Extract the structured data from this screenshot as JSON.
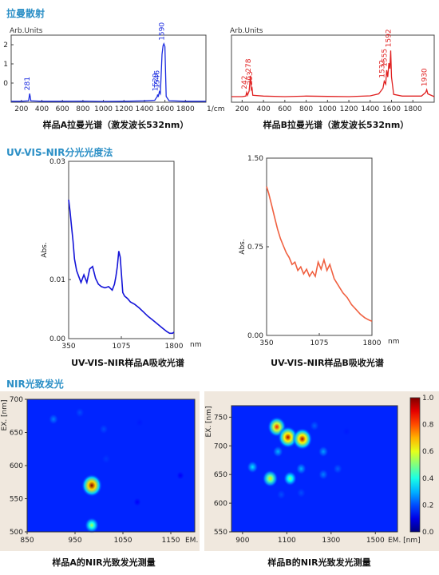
{
  "sections": {
    "raman": "拉曼散射",
    "uvvis": "UV-VIS-NIR分光光度法",
    "nir": "NIR光致发光"
  },
  "chart_data": [
    {
      "id": "raman-a",
      "type": "line",
      "caption": "样品A拉曼光谱（激发波长532nm）",
      "ylabel": "Arb.Units",
      "xunit": "1/cm",
      "xlim": [
        100,
        2000
      ],
      "ylim": [
        -1,
        2.5
      ],
      "xticks": [
        200,
        400,
        600,
        800,
        1000,
        1200,
        1400,
        1600,
        1800
      ],
      "yticks": [
        0,
        1,
        2
      ],
      "color": "#1a2be0",
      "x": [
        100,
        200,
        270,
        281,
        292,
        400,
        600,
        800,
        1000,
        1200,
        1400,
        1500,
        1525,
        1529,
        1535,
        1546,
        1555,
        1572,
        1582,
        1590,
        1600,
        1612,
        1640,
        1800,
        1900,
        2000
      ],
      "y": [
        -0.95,
        -0.95,
        -0.93,
        -0.55,
        -0.93,
        -0.95,
        -0.95,
        -0.94,
        -0.96,
        -0.95,
        -0.93,
        -0.9,
        -0.7,
        -0.6,
        -0.72,
        -0.45,
        -0.55,
        1.5,
        1.95,
        2.05,
        1.9,
        -0.7,
        -0.92,
        -0.95,
        -0.95,
        -0.95
      ],
      "peak_labels": [
        "281",
        "1529",
        "1546",
        "1590"
      ],
      "peak_x": [
        281,
        1529,
        1546,
        1590
      ],
      "peak_y": [
        -0.55,
        -0.6,
        -0.45,
        2.05
      ]
    },
    {
      "id": "raman-b",
      "type": "line",
      "caption": "样品B拉曼光谱（激发波长532nm）",
      "ylabel": "Arb.Units",
      "xlim": [
        100,
        2000
      ],
      "ylim": [
        -0.2,
        2.2
      ],
      "xticks": [
        200,
        400,
        600,
        800,
        1000,
        1200,
        1400,
        1600,
        1800
      ],
      "yticks": [],
      "color": "#e02020",
      "x": [
        100,
        200,
        235,
        242,
        250,
        265,
        278,
        286,
        293,
        300,
        400,
        600,
        800,
        1000,
        1200,
        1400,
        1480,
        1520,
        1532,
        1545,
        1555,
        1565,
        1575,
        1585,
        1592,
        1600,
        1620,
        1700,
        1880,
        1920,
        1930,
        1940,
        2000
      ],
      "y": [
        0.0,
        0.0,
        0.02,
        0.15,
        0.05,
        0.2,
        0.75,
        0.25,
        0.3,
        0.05,
        0.02,
        0.0,
        0.02,
        0.01,
        0.0,
        0.03,
        0.1,
        0.3,
        0.55,
        0.45,
        0.95,
        0.7,
        1.2,
        1.0,
        1.65,
        0.7,
        0.08,
        0.02,
        0.02,
        0.15,
        0.25,
        0.1,
        0.0
      ],
      "peak_labels": [
        "242",
        "278",
        "293",
        "1532",
        "1555",
        "1592",
        "1930"
      ],
      "peak_x": [
        242,
        278,
        293,
        1532,
        1555,
        1592,
        1930
      ],
      "peak_y": [
        0.15,
        0.75,
        0.3,
        0.55,
        0.95,
        1.65,
        0.25
      ]
    },
    {
      "id": "uv-a",
      "type": "line",
      "caption": "UV-VIS-NIR样品A吸收光谱",
      "ylabel": "Abs.",
      "xunit": "nm",
      "xlim": [
        350,
        1800
      ],
      "ylim": [
        0.0,
        0.03
      ],
      "xticks": [
        350,
        1075,
        1800
      ],
      "yticks": [
        0.0,
        0.01,
        0.03
      ],
      "ytick_labels": [
        "0.00",
        "0.01",
        "0.03"
      ],
      "color": "#1414d8",
      "x": [
        350,
        370,
        390,
        410,
        430,
        460,
        490,
        520,
        560,
        600,
        640,
        680,
        720,
        760,
        800,
        850,
        900,
        950,
        980,
        1000,
        1020,
        1040,
        1060,
        1075,
        1095,
        1120,
        1160,
        1200,
        1260,
        1320,
        1380,
        1440,
        1500,
        1560,
        1620,
        1660,
        1700,
        1740,
        1780,
        1800
      ],
      "y": [
        0.0235,
        0.0215,
        0.019,
        0.0165,
        0.0135,
        0.0115,
        0.0105,
        0.0095,
        0.0108,
        0.0095,
        0.0118,
        0.0122,
        0.0102,
        0.0092,
        0.0088,
        0.0086,
        0.0088,
        0.0082,
        0.0092,
        0.0105,
        0.0122,
        0.0148,
        0.0138,
        0.0112,
        0.0078,
        0.0072,
        0.0068,
        0.0062,
        0.0058,
        0.0052,
        0.0045,
        0.0038,
        0.0032,
        0.0026,
        0.002,
        0.0016,
        0.0012,
        0.0009,
        0.0009,
        0.0011
      ]
    },
    {
      "id": "uv-b",
      "type": "line",
      "caption": "UV-VIS-NIR样品B吸收光谱",
      "ylabel": "Abs.",
      "xunit": "nm",
      "xlim": [
        350,
        1800
      ],
      "ylim": [
        0.0,
        1.5
      ],
      "xticks": [
        350,
        1075,
        1800
      ],
      "yticks": [
        0.0,
        0.75,
        1.5
      ],
      "ytick_labels": [
        "0.00",
        "0.75",
        "1.50"
      ],
      "color": "#f06040",
      "x": [
        350,
        380,
        420,
        460,
        500,
        540,
        580,
        620,
        660,
        700,
        740,
        780,
        820,
        860,
        900,
        940,
        980,
        1020,
        1060,
        1100,
        1140,
        1180,
        1220,
        1280,
        1340,
        1400,
        1460,
        1520,
        1580,
        1640,
        1700,
        1760,
        1800
      ],
      "y": [
        1.26,
        1.2,
        1.1,
        1.0,
        0.9,
        0.82,
        0.76,
        0.7,
        0.66,
        0.6,
        0.62,
        0.55,
        0.58,
        0.52,
        0.56,
        0.5,
        0.54,
        0.5,
        0.62,
        0.56,
        0.64,
        0.55,
        0.6,
        0.48,
        0.42,
        0.36,
        0.32,
        0.26,
        0.22,
        0.18,
        0.15,
        0.13,
        0.12
      ]
    },
    {
      "id": "pl-a",
      "type": "heatmap",
      "caption": "样品A的NIR光致发光测量",
      "xlabel": "EM.",
      "ylabel": "EX. [nm]",
      "xlim": [
        850,
        1200
      ],
      "ylim": [
        500,
        700
      ],
      "xticks": [
        850,
        950,
        1050,
        1150
      ],
      "yticks": [
        500,
        550,
        600,
        650,
        700
      ],
      "spots": [
        {
          "x": 985,
          "y": 570,
          "i": 1.0
        },
        {
          "x": 985,
          "y": 510,
          "i": 0.55
        },
        {
          "x": 905,
          "y": 670,
          "i": 0.25
        },
        {
          "x": 960,
          "y": 680,
          "i": 0.2
        },
        {
          "x": 1010,
          "y": 655,
          "i": 0.2
        },
        {
          "x": 1015,
          "y": 610,
          "i": 0.18
        },
        {
          "x": 1085,
          "y": 665,
          "i": 0.15
        },
        {
          "x": 1080,
          "y": 545,
          "i": 0.12
        },
        {
          "x": 1170,
          "y": 585,
          "i": 0.12
        }
      ]
    },
    {
      "id": "pl-b",
      "type": "heatmap",
      "caption": "样品B的NIR光致发光测量",
      "xlabel": "EM. [nm]",
      "ylabel": "EX. [nm]",
      "xlim": [
        850,
        1600
      ],
      "ylim": [
        550,
        770
      ],
      "xticks": [
        900,
        1100,
        1300,
        1500
      ],
      "yticks": [
        550,
        600,
        650,
        700,
        750
      ],
      "colorbar_ticks": [
        "0.0",
        "0.2",
        "0.4",
        "0.6",
        "0.8",
        "1.0"
      ],
      "spots": [
        {
          "x": 1055,
          "y": 733,
          "i": 0.85
        },
        {
          "x": 1105,
          "y": 715,
          "i": 0.95
        },
        {
          "x": 1170,
          "y": 712,
          "i": 0.95
        },
        {
          "x": 1025,
          "y": 643,
          "i": 0.65
        },
        {
          "x": 1115,
          "y": 643,
          "i": 0.5
        },
        {
          "x": 945,
          "y": 663,
          "i": 0.35
        },
        {
          "x": 1060,
          "y": 690,
          "i": 0.3
        },
        {
          "x": 1165,
          "y": 660,
          "i": 0.3
        },
        {
          "x": 1265,
          "y": 690,
          "i": 0.28
        },
        {
          "x": 1265,
          "y": 650,
          "i": 0.25
        },
        {
          "x": 1330,
          "y": 660,
          "i": 0.22
        },
        {
          "x": 1165,
          "y": 618,
          "i": 0.2
        },
        {
          "x": 1075,
          "y": 615,
          "i": 0.2
        },
        {
          "x": 1225,
          "y": 735,
          "i": 0.22
        },
        {
          "x": 1370,
          "y": 725,
          "i": 0.15
        }
      ]
    }
  ]
}
